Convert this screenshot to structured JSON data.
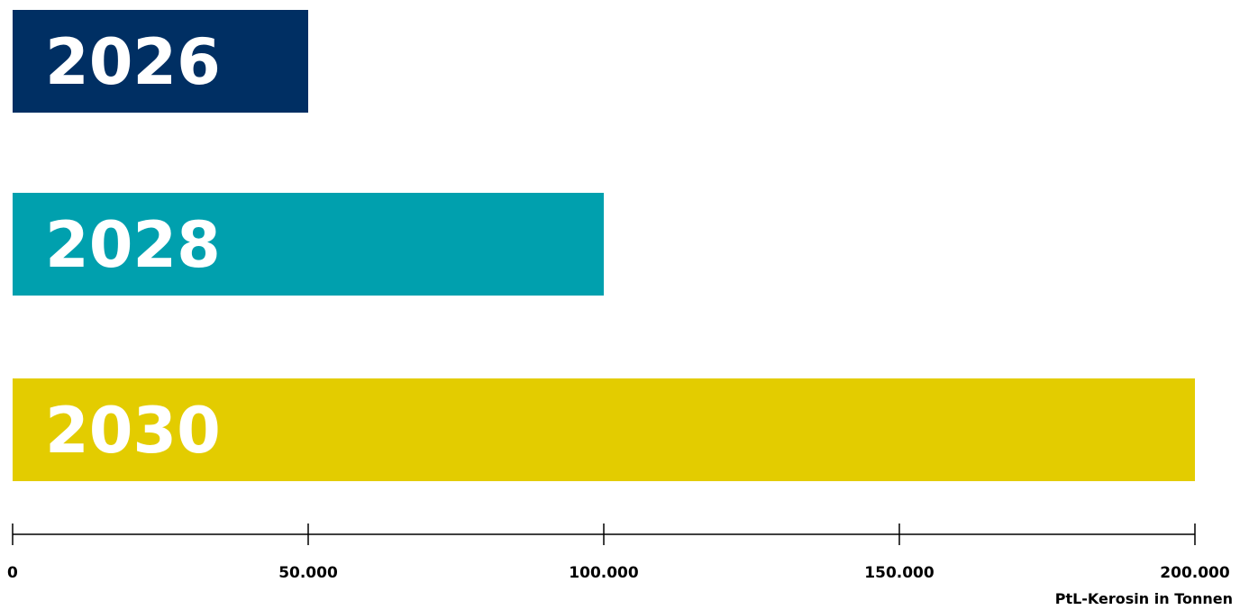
{
  "chart_data": {
    "type": "bar",
    "orientation": "horizontal",
    "categories": [
      "2026",
      "2028",
      "2030"
    ],
    "values": [
      50000,
      100000,
      200000
    ],
    "colors": [
      "#002F63",
      "#00A0AE",
      "#E3CC00"
    ],
    "title": "",
    "xlabel": "PtL-Kerosin in Tonnen",
    "ylabel": "",
    "xlim": [
      0,
      200000
    ],
    "x_ticks": [
      0,
      50000,
      100000,
      150000,
      200000
    ],
    "x_tick_labels": [
      "0",
      "50.000",
      "100.000",
      "150.000",
      "200.000"
    ],
    "grid": false,
    "legend": "none",
    "category_labels_inside_bars": true
  }
}
